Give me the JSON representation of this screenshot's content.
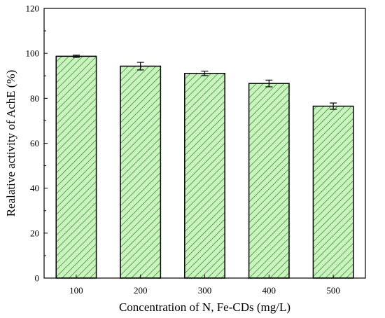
{
  "chart_data": {
    "type": "bar",
    "xlabel": "Concentration of N, Fe-CDs (mg/L)",
    "ylabel": "Realative activity of AchE (%)",
    "categories": [
      "100",
      "200",
      "300",
      "400",
      "500"
    ],
    "values": [
      98.7,
      94.3,
      91.1,
      86.6,
      76.5
    ],
    "errors": [
      0.5,
      1.7,
      1.0,
      1.5,
      1.4
    ],
    "ylim": [
      0,
      120
    ],
    "yticks": [
      0,
      20,
      40,
      60,
      80,
      100,
      120
    ],
    "bar_fill": "#ccf2c0",
    "hatch_color": "#2e9a2e",
    "bar_edge": "#000000",
    "grid": false,
    "legend": "none"
  }
}
